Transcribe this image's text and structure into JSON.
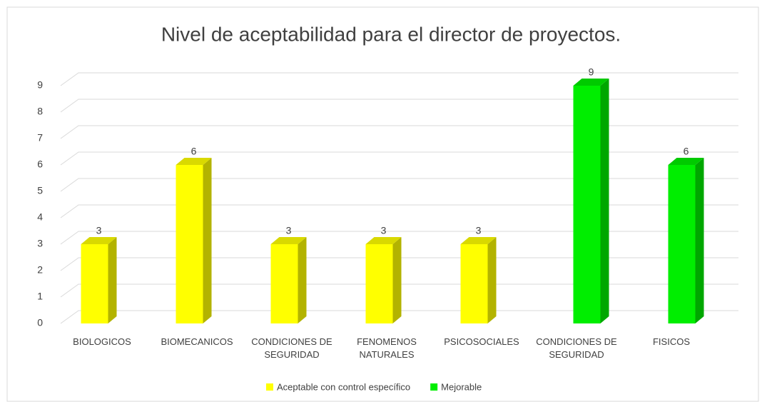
{
  "chart_data": {
    "type": "bar3d",
    "title": "Nivel de aceptabilidad para el director de proyectos.",
    "categories": [
      "BIOLOGICOS",
      "BIOMECANICOS",
      "CONDICIONES DE SEGURIDAD",
      "FENOMENOS NATURALES",
      "PSICOSOCIALES",
      "CONDICIONES DE SEGURIDAD",
      "FISICOS"
    ],
    "series": [
      {
        "name": "Aceptable con control específico",
        "color": "#ffff00",
        "values": [
          3,
          6,
          3,
          3,
          3,
          null,
          null
        ]
      },
      {
        "name": "Mejorable",
        "color": "#00ee00",
        "values": [
          null,
          null,
          null,
          null,
          null,
          9,
          6
        ]
      }
    ],
    "ylim": [
      0,
      9
    ],
    "yticks": [
      0,
      1,
      2,
      3,
      4,
      5,
      6,
      7,
      8,
      9
    ],
    "grid": true,
    "legend": "bottom"
  }
}
